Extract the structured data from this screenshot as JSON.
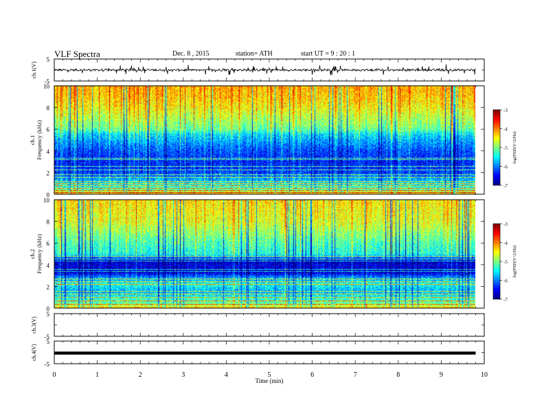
{
  "header": {
    "title": "VLF  Spectra",
    "date": "Dec. 8  , 2015",
    "station": "station= ATH",
    "start": "start  UT  =   9 : 20 : 1"
  },
  "chart_data": [
    {
      "type": "line",
      "panel": "ch.1",
      "ylabel": "ch.1(V)",
      "ylim": [
        -5,
        5
      ],
      "yticks": [
        "5",
        "-5"
      ],
      "xlim": [
        0,
        10
      ],
      "x_end": 9.8,
      "signal_level_v": 0.0,
      "color": "#000000"
    },
    {
      "type": "heatmap",
      "panel": "ch.1",
      "ylabel": "ch.1\nFrequency  (kHz)",
      "ylim": [
        0,
        10
      ],
      "yticks": [
        "0",
        "2",
        "4",
        "6",
        "8",
        "10"
      ],
      "xlim": [
        0,
        10
      ],
      "x_end": 9.8,
      "colorbar": {
        "label": "log(PSD(V^2/Hz)",
        "ticks": [
          "-3",
          "-4",
          "-5",
          "-6",
          "-7"
        ],
        "range": [
          -7,
          -3
        ]
      },
      "profile_khz": [
        [
          0,
          -4.3
        ],
        [
          0.4,
          -5.2
        ],
        [
          1.0,
          -5.6
        ],
        [
          2.0,
          -6.3
        ],
        [
          3.0,
          -6.4
        ],
        [
          4.0,
          -6.2
        ],
        [
          4.8,
          -5.9
        ],
        [
          5.5,
          -5.6
        ],
        [
          6.0,
          -5.1
        ],
        [
          7.0,
          -4.8
        ],
        [
          8.0,
          -4.5
        ],
        [
          9.0,
          -4.3
        ],
        [
          10.0,
          -4.2
        ]
      ],
      "lines_khz": [
        0.2,
        0.4,
        0.6,
        0.8,
        1.0,
        1.2,
        1.6,
        1.85,
        2.3,
        2.6,
        3.2,
        3.35
      ]
    },
    {
      "type": "heatmap",
      "panel": "ch.2",
      "ylabel": "ch.2\nFrequency  (kHz)",
      "ylim": [
        0,
        10
      ],
      "yticks": [
        "0",
        "2",
        "4",
        "6",
        "8",
        "10"
      ],
      "xlim": [
        0,
        10
      ],
      "x_end": 9.8,
      "colorbar": {
        "label": "log(PSD(V^2/Hz)",
        "ticks": [
          "-3",
          "-4",
          "-5",
          "-6",
          "-7"
        ],
        "range": [
          -7,
          -3
        ]
      },
      "profile_khz": [
        [
          0,
          -4.3
        ],
        [
          0.3,
          -5.0
        ],
        [
          0.8,
          -5.3
        ],
        [
          1.5,
          -5.8
        ],
        [
          2.2,
          -5.4
        ],
        [
          2.8,
          -5.9
        ],
        [
          3.3,
          -6.7
        ],
        [
          4.0,
          -6.6
        ],
        [
          4.3,
          -6.8
        ],
        [
          4.6,
          -6.2
        ],
        [
          5.0,
          -5.4
        ],
        [
          6.0,
          -5.2
        ],
        [
          7.0,
          -4.9
        ],
        [
          8.0,
          -4.6
        ],
        [
          9.0,
          -4.5
        ],
        [
          10.0,
          -4.4
        ]
      ],
      "lines_khz": [
        0.4,
        0.7,
        1.0,
        1.3,
        1.6,
        2.2,
        2.5,
        2.7,
        3.4,
        3.6,
        4.35,
        4.55,
        4.8
      ]
    },
    {
      "type": "line",
      "panel": "ch.3",
      "ylabel": "ch.3(V)",
      "ylim": [
        -5,
        5
      ],
      "yticks": [
        "5",
        "-5"
      ],
      "xlim": [
        0,
        10
      ],
      "x_end": 9.8,
      "signal_level_v": 5.0,
      "color": "#000000"
    },
    {
      "type": "line",
      "panel": "ch.4",
      "ylabel": "ch.4(V)",
      "ylim": [
        -5,
        5
      ],
      "yticks": [
        "5",
        "-5"
      ],
      "xlim": [
        0,
        10
      ],
      "x_end": 9.8,
      "signal_level_v": -0.3,
      "color": "#000000"
    }
  ],
  "xaxis": {
    "label": "Time  (min)",
    "ticks": [
      "0",
      "1",
      "2",
      "3",
      "4",
      "5",
      "6",
      "7",
      "8",
      "9",
      "10"
    ]
  }
}
